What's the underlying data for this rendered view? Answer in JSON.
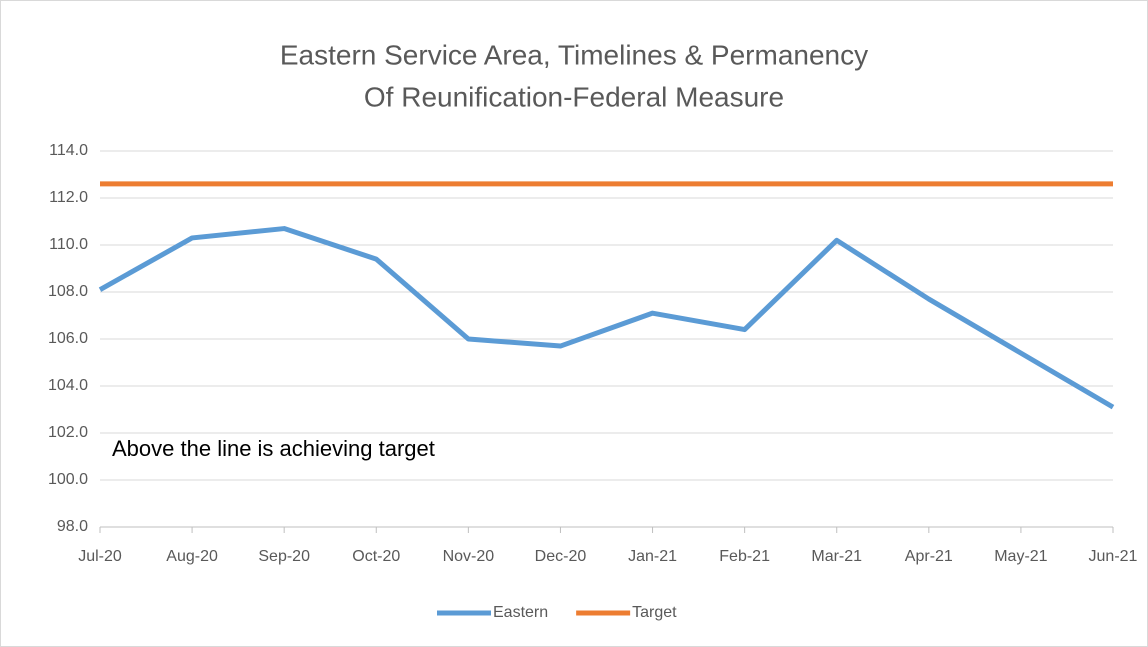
{
  "chart_data": {
    "type": "line",
    "title": "Eastern Service Area, Timelines & Permanency",
    "subtitle": "Of Reunification-Federal Measure",
    "annotation": "Above the line is achieving target",
    "categories": [
      "Jul-20",
      "Aug-20",
      "Sep-20",
      "Oct-20",
      "Nov-20",
      "Dec-20",
      "Jan-21",
      "Feb-21",
      "Mar-21",
      "Apr-21",
      "May-21",
      "Jun-21"
    ],
    "series": [
      {
        "name": "Eastern",
        "color": "#5b9bd5",
        "values": [
          108.1,
          110.3,
          110.7,
          109.4,
          106.0,
          105.7,
          107.1,
          106.4,
          110.2,
          107.7,
          105.4,
          103.1
        ]
      },
      {
        "name": "Target",
        "color": "#ed7d31",
        "values": [
          112.6,
          112.6,
          112.6,
          112.6,
          112.6,
          112.6,
          112.6,
          112.6,
          112.6,
          112.6,
          112.6,
          112.6
        ]
      }
    ],
    "ylim": [
      98,
      114
    ],
    "yticks": [
      {
        "value": 98,
        "label": "98.0"
      },
      {
        "value": 100,
        "label": "100.0"
      },
      {
        "value": 102,
        "label": "102.0"
      },
      {
        "value": 104,
        "label": "104.0"
      },
      {
        "value": 106,
        "label": "106.0"
      },
      {
        "value": 108,
        "label": "108.0"
      },
      {
        "value": 110,
        "label": "110.0"
      },
      {
        "value": 112,
        "label": "112.0"
      },
      {
        "value": 114,
        "label": "114.0"
      }
    ],
    "grid": true,
    "legend": "bottom"
  }
}
